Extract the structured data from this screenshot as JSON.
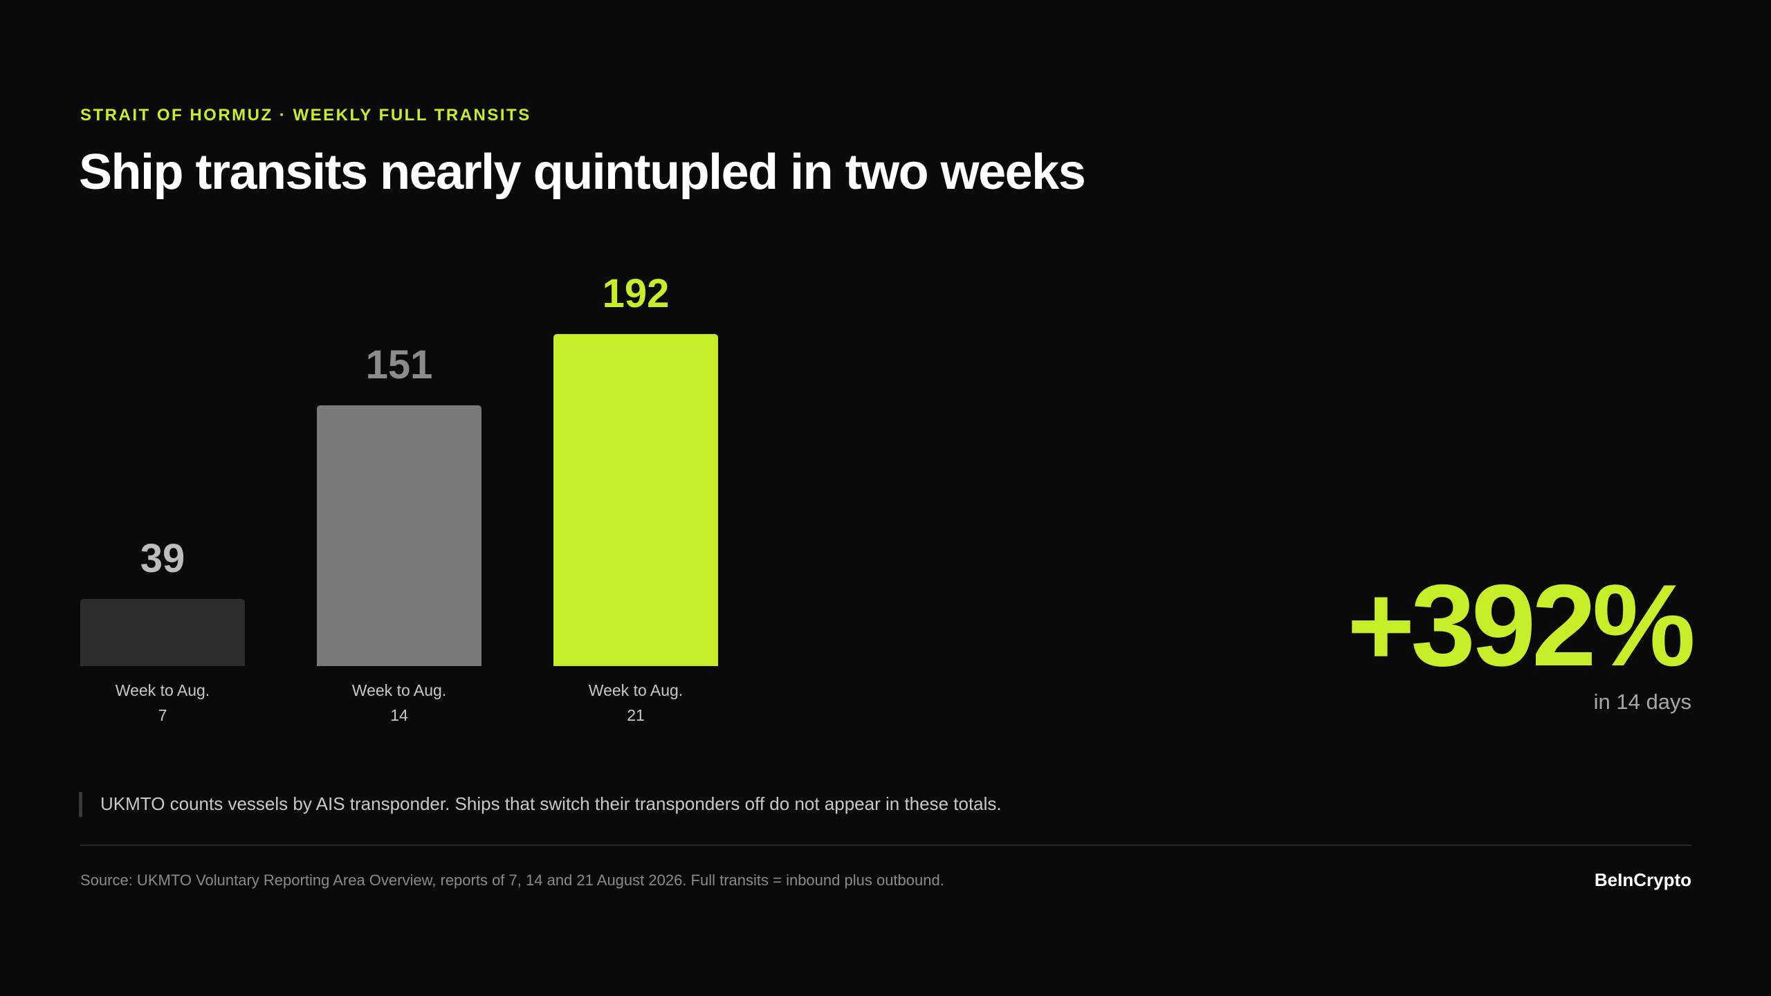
{
  "chart_data": {
    "type": "bar",
    "kicker": "STRAIT OF HORMUZ · WEEKLY FULL TRANSITS",
    "title": "Ship transits nearly quintupled in two weeks",
    "categories": [
      "Week to Aug. 7",
      "Week to Aug. 14",
      "Week to Aug. 21"
    ],
    "values": [
      39,
      151,
      192
    ],
    "colors": [
      "#2d2d2d",
      "#7a7a7a",
      "#c6ef2a"
    ],
    "label_colors": [
      "#bdbdbd",
      "#8c8c8c",
      "#c6ef2a"
    ],
    "callout": "+392%",
    "callout_caption": "in 14 days",
    "note": "UKMTO counts vessels by AIS transponder. Ships that switch their transponders off do not appear in these totals.",
    "source": "Source: UKMTO Voluntary Reporting Area Overview, reports of 7, 14 and 21 August 2026. Full transits = inbound plus outbound.",
    "brand": "BeInCrypto"
  }
}
